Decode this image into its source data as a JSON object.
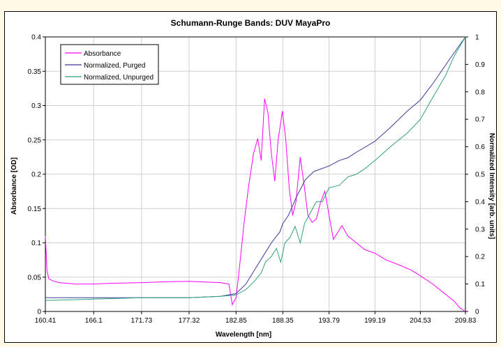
{
  "chart_data": {
    "type": "line",
    "title": "Schumann-Runge Bands: DUV MayaPro",
    "xlabel": "Wavelength [nm]",
    "ylabel": "Absorbance [OD]",
    "y2label": "Normalized Intensity [arb. units]",
    "xlim": [
      160.41,
      209.83
    ],
    "ylim": [
      0,
      0.4
    ],
    "y2lim": [
      0,
      1
    ],
    "x_ticks": [
      "160.41",
      "166.1",
      "171.73",
      "177.32",
      "182.85",
      "188.35",
      "193.79",
      "199.19",
      "204.53",
      "209.83"
    ],
    "y_ticks": [
      "0",
      "0.05",
      "0.1",
      "0.15",
      "0.2",
      "0.25",
      "0.3",
      "0.35",
      "0.4"
    ],
    "y2_ticks": [
      "0",
      "0.1",
      "0.2",
      "0.3",
      "0.4",
      "0.5",
      "0.6",
      "0.7",
      "0.8",
      "0.9",
      "1"
    ],
    "grid": true,
    "legend": "top-left",
    "series": [
      {
        "name": "Absorbance",
        "axis": "left",
        "color": "#ff00ff",
        "x": [
          160.41,
          160.6,
          160.8,
          161.2,
          162.0,
          163.0,
          164.0,
          166.1,
          168.0,
          171.73,
          174.0,
          177.32,
          179.0,
          181.0,
          182.0,
          182.4,
          182.85,
          183.3,
          183.8,
          184.3,
          184.9,
          185.4,
          185.8,
          186.2,
          186.6,
          187.0,
          187.4,
          187.8,
          188.3,
          188.7,
          189.1,
          189.5,
          189.9,
          190.4,
          190.9,
          191.3,
          191.8,
          192.3,
          192.8,
          193.3,
          193.79,
          194.3,
          194.8,
          195.3,
          196.0,
          197.0,
          198.0,
          199.19,
          200.5,
          202.0,
          203.5,
          204.53,
          206.0,
          207.5,
          208.5,
          209.2,
          209.83
        ],
        "values": [
          0.11,
          0.06,
          0.048,
          0.045,
          0.042,
          0.041,
          0.04,
          0.04,
          0.041,
          0.042,
          0.043,
          0.044,
          0.043,
          0.042,
          0.04,
          0.01,
          0.02,
          0.07,
          0.13,
          0.18,
          0.23,
          0.252,
          0.22,
          0.31,
          0.29,
          0.23,
          0.19,
          0.25,
          0.292,
          0.25,
          0.18,
          0.14,
          0.16,
          0.225,
          0.18,
          0.14,
          0.13,
          0.135,
          0.16,
          0.175,
          0.14,
          0.105,
          0.115,
          0.125,
          0.11,
          0.1,
          0.09,
          0.085,
          0.075,
          0.068,
          0.06,
          0.052,
          0.04,
          0.025,
          0.015,
          0.005,
          0.0
        ]
      },
      {
        "name": "Normalized, Purged",
        "axis": "right",
        "color": "#3a3a9a",
        "x": [
          160.41,
          163.0,
          166.1,
          171.73,
          177.32,
          181.0,
          182.85,
          184.0,
          185.0,
          186.0,
          187.0,
          188.0,
          188.35,
          189.0,
          190.0,
          191.0,
          192.0,
          193.79,
          195.0,
          196.0,
          197.0,
          199.19,
          201.0,
          203.0,
          204.53,
          206.0,
          208.0,
          209.83
        ],
        "values": [
          0.05,
          0.05,
          0.05,
          0.05,
          0.05,
          0.055,
          0.065,
          0.1,
          0.15,
          0.2,
          0.25,
          0.29,
          0.32,
          0.35,
          0.42,
          0.48,
          0.51,
          0.53,
          0.55,
          0.56,
          0.58,
          0.62,
          0.67,
          0.73,
          0.77,
          0.83,
          0.92,
          1.0
        ]
      },
      {
        "name": "Normalized, Unpurged",
        "axis": "right",
        "color": "#30a07a",
        "x": [
          160.41,
          166.1,
          171.73,
          177.32,
          181.0,
          182.85,
          184.0,
          185.0,
          185.8,
          186.3,
          187.0,
          187.6,
          188.1,
          188.6,
          189.2,
          189.8,
          190.4,
          190.9,
          191.6,
          192.3,
          193.0,
          193.79,
          195.0,
          196.0,
          197.0,
          198.0,
          199.19,
          201.0,
          203.0,
          204.53,
          206.0,
          207.5,
          208.5,
          209.83
        ],
        "values": [
          0.04,
          0.045,
          0.05,
          0.05,
          0.055,
          0.06,
          0.08,
          0.11,
          0.14,
          0.18,
          0.2,
          0.23,
          0.18,
          0.25,
          0.27,
          0.31,
          0.25,
          0.32,
          0.36,
          0.4,
          0.4,
          0.45,
          0.46,
          0.49,
          0.5,
          0.52,
          0.55,
          0.6,
          0.65,
          0.7,
          0.78,
          0.86,
          0.93,
          1.0
        ]
      }
    ]
  }
}
